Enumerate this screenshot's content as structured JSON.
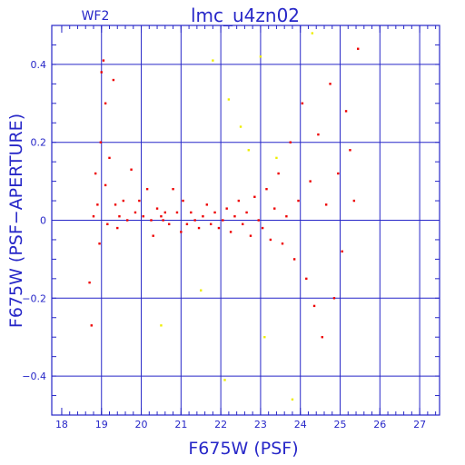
{
  "chart_data": {
    "type": "scatter",
    "title": "lmc_u4zn02",
    "subtitle": "WF2",
    "xlabel": "F675W (PSF)",
    "ylabel": "F675W (PSF−APERTURE)",
    "xlim": [
      17.75,
      27.5
    ],
    "ylim": [
      -0.5,
      0.5
    ],
    "x_ticks": [
      "18",
      "19",
      "20",
      "21",
      "22",
      "23",
      "24",
      "25",
      "26",
      "27"
    ],
    "y_ticks": [
      "0.4",
      "0.2",
      "0",
      "−0.2",
      "−0.4"
    ],
    "grid": true,
    "colors": {
      "axis": "#2727c8",
      "series_main": "#ee0000",
      "series_secondary": "#eeee00"
    },
    "series": [
      {
        "color": "#ee0000",
        "points": [
          [
            18.7,
            -0.16
          ],
          [
            18.75,
            -0.27
          ],
          [
            18.8,
            0.01
          ],
          [
            18.85,
            0.12
          ],
          [
            18.9,
            0.04
          ],
          [
            18.95,
            -0.06
          ],
          [
            18.98,
            0.2
          ],
          [
            19.0,
            0.38
          ],
          [
            19.05,
            0.41
          ],
          [
            19.1,
            0.3
          ],
          [
            19.1,
            0.09
          ],
          [
            19.15,
            -0.01
          ],
          [
            19.2,
            0.16
          ],
          [
            19.3,
            0.36
          ],
          [
            19.35,
            0.04
          ],
          [
            19.4,
            -0.02
          ],
          [
            19.45,
            0.01
          ],
          [
            19.55,
            0.05
          ],
          [
            19.65,
            0.0
          ],
          [
            19.75,
            0.13
          ],
          [
            19.85,
            0.02
          ],
          [
            19.95,
            0.05
          ],
          [
            20.05,
            0.01
          ],
          [
            20.15,
            0.08
          ],
          [
            20.25,
            0.0
          ],
          [
            20.3,
            -0.04
          ],
          [
            20.4,
            0.03
          ],
          [
            20.5,
            0.01
          ],
          [
            20.55,
            0.0
          ],
          [
            20.6,
            0.02
          ],
          [
            20.7,
            -0.01
          ],
          [
            20.8,
            0.08
          ],
          [
            20.9,
            0.02
          ],
          [
            21.0,
            -0.03
          ],
          [
            21.05,
            0.05
          ],
          [
            21.15,
            -0.01
          ],
          [
            21.25,
            0.02
          ],
          [
            21.35,
            0.0
          ],
          [
            21.45,
            -0.02
          ],
          [
            21.55,
            0.01
          ],
          [
            21.65,
            0.04
          ],
          [
            21.75,
            -0.01
          ],
          [
            21.85,
            0.02
          ],
          [
            21.95,
            -0.02
          ],
          [
            22.05,
            0.0
          ],
          [
            22.15,
            0.03
          ],
          [
            22.25,
            -0.03
          ],
          [
            22.35,
            0.01
          ],
          [
            22.45,
            0.05
          ],
          [
            22.55,
            -0.01
          ],
          [
            22.65,
            0.02
          ],
          [
            22.75,
            -0.04
          ],
          [
            22.85,
            0.06
          ],
          [
            22.95,
            0.0
          ],
          [
            23.05,
            -0.02
          ],
          [
            23.15,
            0.08
          ],
          [
            23.25,
            -0.05
          ],
          [
            23.35,
            0.03
          ],
          [
            23.45,
            0.12
          ],
          [
            23.55,
            -0.06
          ],
          [
            23.65,
            0.01
          ],
          [
            23.75,
            0.2
          ],
          [
            23.85,
            -0.1
          ],
          [
            23.95,
            0.05
          ],
          [
            24.05,
            0.3
          ],
          [
            24.15,
            -0.15
          ],
          [
            24.25,
            0.1
          ],
          [
            24.35,
            -0.22
          ],
          [
            24.45,
            0.22
          ],
          [
            24.55,
            -0.3
          ],
          [
            24.65,
            0.04
          ],
          [
            24.75,
            0.35
          ],
          [
            24.85,
            -0.2
          ],
          [
            24.95,
            0.12
          ],
          [
            25.05,
            -0.08
          ],
          [
            25.15,
            0.28
          ],
          [
            25.25,
            0.18
          ],
          [
            25.35,
            0.05
          ],
          [
            25.45,
            0.44
          ]
        ]
      },
      {
        "color": "#eeee00",
        "points": [
          [
            20.5,
            -0.27
          ],
          [
            21.8,
            0.41
          ],
          [
            22.2,
            0.31
          ],
          [
            22.5,
            0.24
          ],
          [
            23.0,
            0.42
          ],
          [
            22.1,
            -0.41
          ],
          [
            23.4,
            0.16
          ],
          [
            23.8,
            -0.46
          ],
          [
            22.7,
            0.18
          ],
          [
            21.5,
            -0.18
          ],
          [
            24.3,
            0.48
          ],
          [
            23.1,
            -0.3
          ]
        ]
      }
    ]
  }
}
